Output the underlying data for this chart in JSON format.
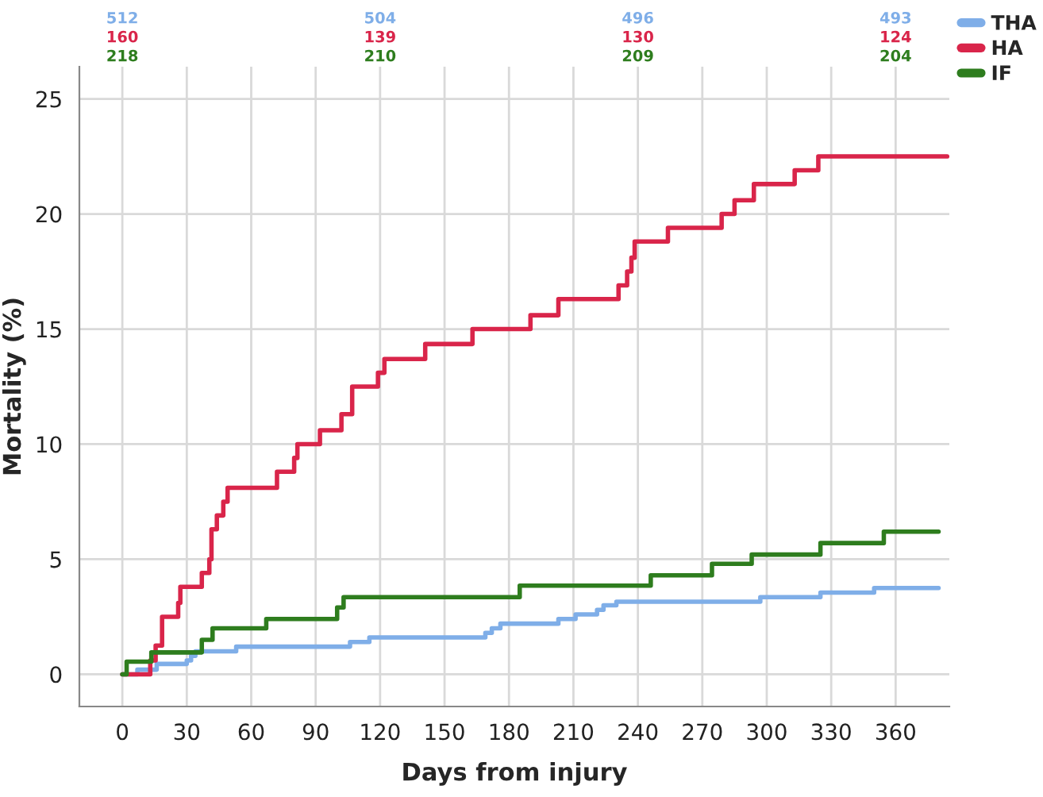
{
  "chart_data": {
    "type": "step",
    "xlabel": "Days from injury",
    "ylabel": "Mortality (%)",
    "xlim": [
      -20,
      385
    ],
    "ylim": [
      -1.4,
      26.4
    ],
    "xticks": [
      0,
      30,
      60,
      90,
      120,
      150,
      180,
      210,
      240,
      270,
      300,
      330,
      360
    ],
    "yticks": [
      0,
      5,
      10,
      15,
      20,
      25
    ],
    "grid": true,
    "legend": "top right",
    "series": [
      {
        "name": "THA",
        "color": "#7faee8",
        "x": [
          0,
          7,
          16,
          30,
          32,
          34,
          53,
          106,
          115,
          169,
          172,
          176,
          203,
          211,
          221,
          224,
          230,
          297,
          325,
          350,
          380
        ],
        "values": [
          0,
          0.2,
          0.45,
          0.6,
          0.8,
          1.0,
          1.2,
          1.4,
          1.6,
          1.8,
          2.0,
          2.2,
          2.4,
          2.6,
          2.8,
          3.0,
          3.15,
          3.35,
          3.55,
          3.75,
          3.75
        ]
      },
      {
        "name": "HA",
        "color": "#d9254a",
        "x": [
          0,
          13,
          15.5,
          18.5,
          26,
          27,
          37,
          40.5,
          41.5,
          44,
          47,
          49,
          72,
          80,
          81.5,
          92,
          102,
          107,
          119,
          122,
          141,
          163,
          190,
          203,
          231,
          235,
          237,
          238.5,
          254,
          279,
          285,
          294,
          313,
          324,
          384
        ],
        "values": [
          0,
          0.6,
          1.25,
          2.5,
          3.1,
          3.8,
          4.4,
          5.0,
          6.3,
          6.9,
          7.5,
          8.1,
          8.8,
          9.4,
          10.0,
          10.6,
          11.3,
          12.5,
          13.1,
          13.7,
          14.35,
          15.0,
          15.6,
          16.3,
          16.9,
          17.5,
          18.1,
          18.8,
          19.4,
          20.0,
          20.6,
          21.3,
          21.9,
          22.5,
          22.5
        ]
      },
      {
        "name": "IF",
        "color": "#2e7d1e",
        "x": [
          0,
          2,
          13.5,
          37,
          42,
          67,
          100,
          103,
          185,
          246,
          274.5,
          293,
          325,
          354.5,
          380
        ],
        "values": [
          0,
          0.55,
          0.95,
          1.5,
          2.0,
          2.4,
          2.9,
          3.35,
          3.85,
          4.3,
          4.8,
          5.2,
          5.7,
          6.2,
          6.2
        ]
      }
    ],
    "annotations": [
      "512",
      "160",
      "218",
      "504",
      "139",
      "210",
      "496",
      "130",
      "209",
      "493",
      "124",
      "204"
    ]
  }
}
